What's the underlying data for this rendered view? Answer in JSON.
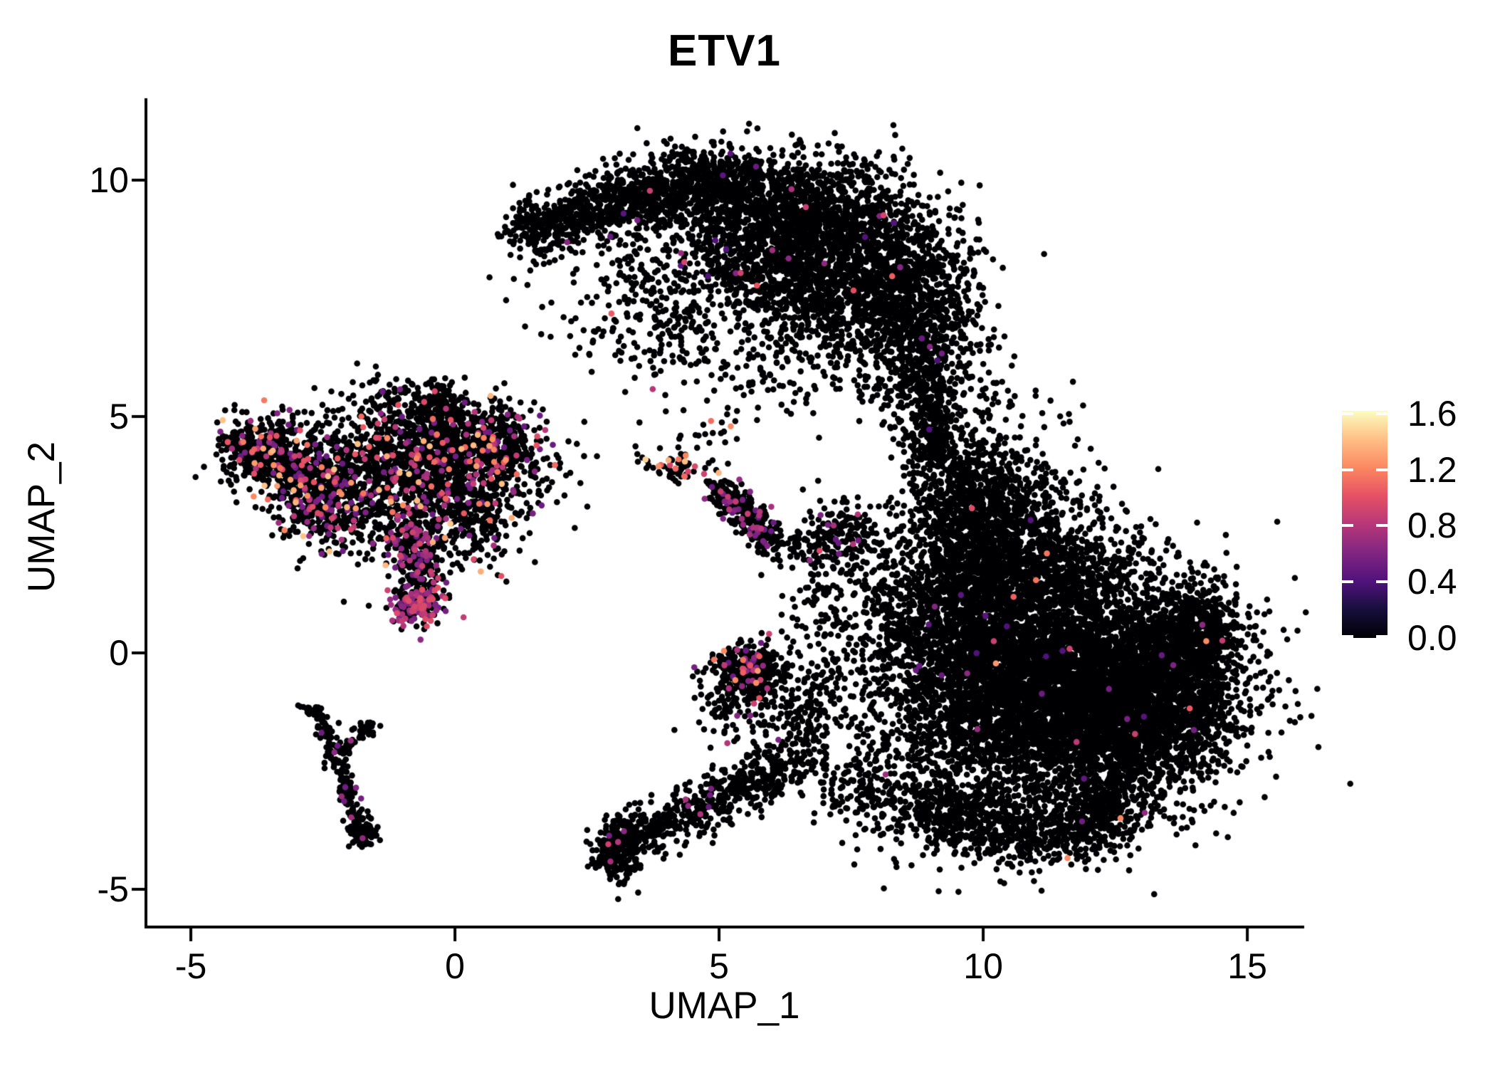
{
  "chart_data": {
    "type": "scatter",
    "title": "ETV1",
    "xlabel": "UMAP_1",
    "ylabel": "UMAP_2",
    "xlim": [
      -5.85,
      16.05
    ],
    "ylim": [
      -5.8,
      11.7
    ],
    "x_ticks": [
      -5,
      0,
      5,
      10,
      15
    ],
    "x_tick_labels": [
      "-5",
      "0",
      "5",
      "10",
      "15"
    ],
    "y_ticks": [
      10,
      5,
      0,
      -5
    ],
    "y_tick_labels": [
      "10",
      "5",
      "0",
      "-5"
    ],
    "grid": false,
    "background_color": "#ffffff",
    "axis_color": "#000000",
    "point_color_meaning": "ETV1 expression level per cell (0 = black, high = pale yellow)",
    "n_points_approx": 23474,
    "colorbar": {
      "position": "right",
      "min": 0.0,
      "max": 1.62,
      "ticks": [
        1.6,
        1.2,
        0.8,
        0.4,
        0.0
      ],
      "tick_labels": [
        "1.6",
        "1.2",
        "0.8",
        "0.4",
        "0.0"
      ],
      "colormap": "magma",
      "stops": [
        [
          0.0,
          "#000004"
        ],
        [
          0.13,
          "#180f3e"
        ],
        [
          0.25,
          "#51127c"
        ],
        [
          0.38,
          "#832681"
        ],
        [
          0.5,
          "#b73779"
        ],
        [
          0.63,
          "#e75263"
        ],
        [
          0.75,
          "#fb8861"
        ],
        [
          0.88,
          "#fec287"
        ],
        [
          1.0,
          "#fcfdbf"
        ]
      ]
    },
    "blob_schema": [
      "x",
      "y",
      "sd_x",
      "sd_y",
      "n",
      "expr_frac",
      "expr_min",
      "expr_max"
    ],
    "blobs": [
      [
        6.3,
        9.35,
        1.05,
        0.62,
        1150,
        0.006,
        0.4,
        1.1
      ],
      [
        7.55,
        8.0,
        1.0,
        0.92,
        1500,
        0.006,
        0.4,
        1.1
      ],
      [
        8.75,
        6.8,
        0.55,
        1.05,
        750,
        0.006,
        0.4,
        1.1
      ],
      [
        3.9,
        7.3,
        0.95,
        0.85,
        170,
        0.004,
        0.4,
        1.1
      ],
      [
        5.9,
        5.9,
        0.75,
        0.5,
        70,
        0,
        0,
        0
      ],
      [
        8.95,
        4.45,
        0.3,
        0.25,
        90,
        0.005,
        0.4,
        1.1
      ],
      [
        9.9,
        5.6,
        0.5,
        0.65,
        55,
        0,
        0,
        0
      ],
      [
        10.35,
        3.0,
        0.85,
        0.85,
        650,
        0.004,
        0.4,
        1.3
      ],
      [
        11.2,
        -0.8,
        1.5,
        1.3,
        4800,
        0.004,
        0.4,
        1.3
      ],
      [
        12.9,
        -0.9,
        1.0,
        1.0,
        1900,
        0.004,
        0.4,
        1.3
      ],
      [
        13.9,
        0.2,
        0.5,
        0.6,
        450,
        0.004,
        0.4,
        1.3
      ],
      [
        9.7,
        0.6,
        0.7,
        1.3,
        1000,
        0.004,
        0.4,
        1.3
      ],
      [
        10.8,
        1.7,
        1.2,
        0.55,
        800,
        0.004,
        0.4,
        1.3
      ],
      [
        8.5,
        0.2,
        0.5,
        1.4,
        280,
        0.006,
        0.4,
        1.0
      ],
      [
        3.05,
        -4.15,
        0.22,
        0.36,
        240,
        0.02,
        0.5,
        0.9
      ],
      [
        6.0,
        -1.3,
        0.5,
        0.6,
        80,
        0.01,
        0.5,
        0.9
      ],
      [
        4.15,
        3.9,
        0.36,
        0.2,
        60,
        0.3,
        0.9,
        1.6
      ],
      [
        5.62,
        -0.35,
        0.34,
        0.3,
        330,
        0.12,
        0.5,
        1.3
      ],
      [
        5.3,
        -1.05,
        0.4,
        0.5,
        90,
        0.05,
        0.5,
        0.9
      ],
      [
        7.35,
        2.5,
        0.4,
        0.42,
        140,
        0.05,
        0.5,
        1.0
      ],
      [
        6.9,
        0.5,
        0.38,
        0.85,
        100,
        0.02,
        0.5,
        0.9
      ],
      [
        -3.5,
        4.3,
        0.5,
        0.42,
        340,
        0.13,
        0.5,
        1.45
      ],
      [
        -2.6,
        3.3,
        0.45,
        0.55,
        430,
        0.16,
        0.5,
        1.45
      ],
      [
        -1.4,
        3.7,
        0.72,
        0.82,
        850,
        0.1,
        0.5,
        1.45
      ],
      [
        -0.25,
        4.45,
        0.62,
        0.5,
        580,
        0.1,
        0.5,
        1.45
      ],
      [
        0.85,
        4.4,
        0.35,
        0.42,
        240,
        0.13,
        0.5,
        1.45
      ],
      [
        0.25,
        3.0,
        0.46,
        0.52,
        340,
        0.1,
        0.5,
        1.45
      ],
      [
        -0.7,
        1.0,
        0.28,
        0.22,
        170,
        0.5,
        0.55,
        1.0
      ],
      [
        1.45,
        3.9,
        0.42,
        0.6,
        90,
        0.1,
        0.5,
        1.2
      ],
      [
        -0.8,
        5.25,
        0.5,
        0.25,
        70,
        0.06,
        0.5,
        1.2
      ],
      [
        -1.7,
        -3.85,
        0.13,
        0.15,
        45,
        0.03,
        0.5,
        0.8
      ],
      [
        2.6,
        6.9,
        0.8,
        0.8,
        18,
        0,
        0,
        0
      ],
      [
        4.8,
        4.55,
        0.3,
        0.2,
        16,
        0.1,
        0.9,
        1.3
      ]
    ],
    "trail_schema": [
      "x1",
      "y1",
      "x2",
      "y2",
      "spread",
      "n",
      "expr_frac",
      "expr_min",
      "expr_max"
    ],
    "trails": [
      [
        1.2,
        8.8,
        3.0,
        9.55,
        0.3,
        420,
        0.006,
        0.4,
        1.1
      ],
      [
        3.0,
        9.5,
        5.3,
        10.15,
        0.38,
        750,
        0.006,
        0.4,
        1.1
      ],
      [
        4.7,
        8.9,
        6.6,
        7.4,
        0.5,
        450,
        0.006,
        0.4,
        1.1
      ],
      [
        3.0,
        8.55,
        4.7,
        6.5,
        0.5,
        150,
        0.004,
        0.4,
        1.1
      ],
      [
        8.85,
        5.9,
        9.1,
        4.7,
        0.24,
        150,
        0.005,
        0.4,
        1.1
      ],
      [
        9.35,
        4.3,
        10.0,
        2.3,
        0.45,
        480,
        0.004,
        0.4,
        1.3
      ],
      [
        9.0,
        -3.3,
        11.0,
        -3.85,
        0.4,
        500,
        0.004,
        0.4,
        1.3
      ],
      [
        11.5,
        -3.9,
        12.6,
        -3.1,
        0.35,
        380,
        0.004,
        0.4,
        1.3
      ],
      [
        14.0,
        1.3,
        14.45,
        0.2,
        0.2,
        120,
        0.004,
        0.4,
        1.3
      ],
      [
        14.25,
        -0.7,
        13.7,
        -2.5,
        0.3,
        110,
        0.004,
        0.4,
        1.3
      ],
      [
        7.05,
        -2.6,
        9.0,
        -3.4,
        0.45,
        260,
        0.008,
        0.5,
        0.9
      ],
      [
        3.3,
        -4.0,
        5.2,
        -3.0,
        0.27,
        300,
        0.02,
        0.5,
        0.9
      ],
      [
        5.2,
        -3.0,
        6.4,
        -2.35,
        0.3,
        200,
        0.015,
        0.5,
        0.9
      ],
      [
        6.45,
        -2.2,
        6.95,
        -0.5,
        0.3,
        110,
        0.01,
        0.5,
        0.9
      ],
      [
        4.95,
        3.5,
        6.05,
        2.35,
        0.16,
        300,
        0.13,
        0.5,
        0.9
      ],
      [
        6.3,
        2.2,
        7.3,
        2.45,
        0.28,
        70,
        0.03,
        0.5,
        0.9
      ],
      [
        7.7,
        1.8,
        8.6,
        0.9,
        0.45,
        60,
        0.02,
        0.5,
        0.9
      ],
      [
        -4.25,
        4.35,
        -3.1,
        4.0,
        0.22,
        150,
        0.1,
        0.5,
        1.45
      ],
      [
        -0.35,
        5.75,
        -0.3,
        4.85,
        0.12,
        80,
        0.06,
        0.5,
        1.2
      ],
      [
        -0.9,
        2.7,
        -0.55,
        1.35,
        0.22,
        290,
        0.3,
        0.5,
        0.95
      ],
      [
        -2.55,
        -1.35,
        -1.75,
        -3.8,
        0.09,
        170,
        0.025,
        0.5,
        0.8
      ],
      [
        -2.2,
        -2.1,
        -1.55,
        -1.55,
        0.09,
        55,
        0.025,
        0.5,
        0.8
      ],
      [
        -2.55,
        -1.3,
        -2.85,
        -1.1,
        0.07,
        25,
        0.02,
        0.5,
        0.8
      ]
    ]
  }
}
